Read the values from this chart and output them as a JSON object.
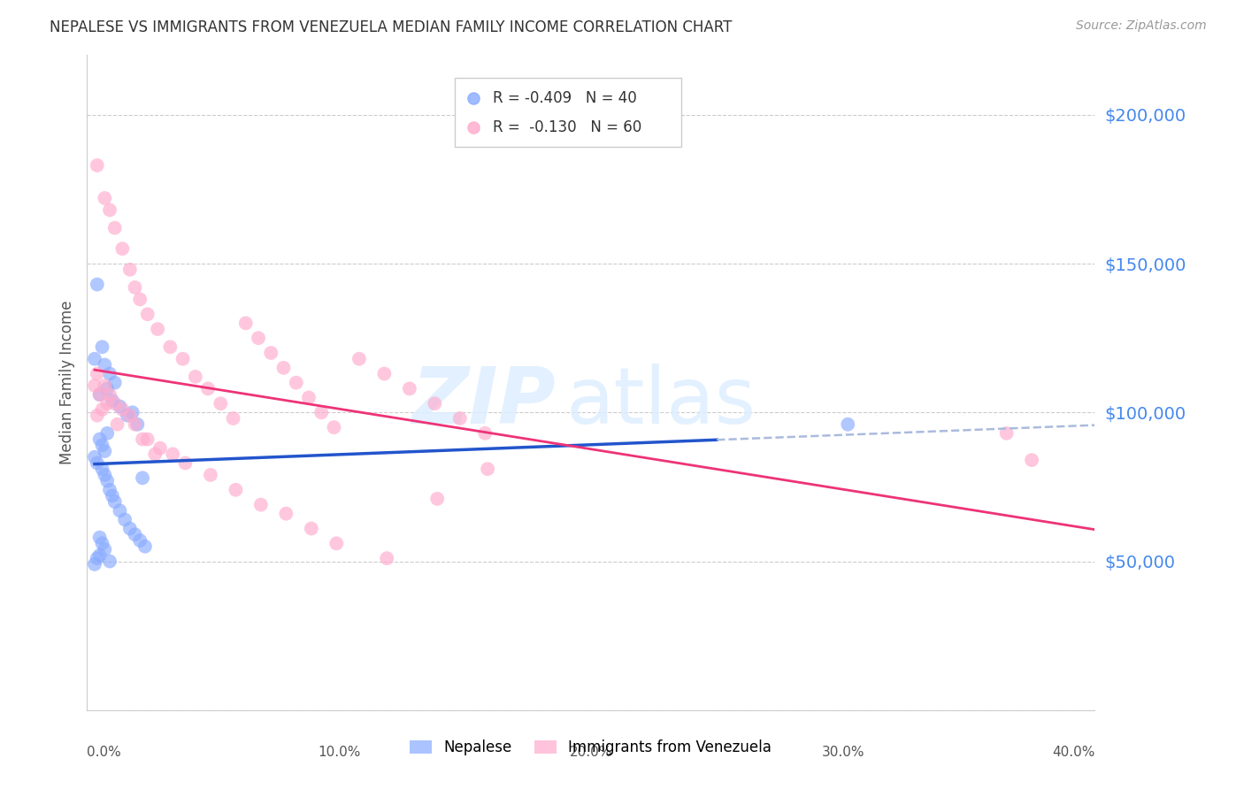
{
  "title": "NEPALESE VS IMMIGRANTS FROM VENEZUELA MEDIAN FAMILY INCOME CORRELATION CHART",
  "source": "Source: ZipAtlas.com",
  "ylabel": "Median Family Income",
  "legend_blue_r": "-0.409",
  "legend_blue_n": "40",
  "legend_pink_r": "-0.130",
  "legend_pink_n": "60",
  "blue_color": "#88AAFF",
  "pink_color": "#FFAACC",
  "trendline_blue_color": "#2255CC",
  "trendline_pink_color": "#EE3377",
  "dashed_ext_color": "#AABBDD",
  "right_axis_color": "#4488EE",
  "ytick_positions": [
    0,
    50000,
    100000,
    150000,
    200000
  ],
  "xlim": [
    0.0,
    0.4
  ],
  "ylim": [
    0,
    220000
  ],
  "blue_scatter_x": [
    0.004,
    0.006,
    0.003,
    0.007,
    0.009,
    0.011,
    0.008,
    0.005,
    0.01,
    0.013,
    0.018,
    0.016,
    0.02,
    0.022,
    0.008,
    0.005,
    0.006,
    0.007,
    0.003,
    0.004,
    0.006,
    0.007,
    0.008,
    0.009,
    0.01,
    0.011,
    0.013,
    0.015,
    0.017,
    0.019,
    0.021,
    0.023,
    0.007,
    0.005,
    0.004,
    0.009,
    0.006,
    0.005,
    0.302,
    0.003
  ],
  "blue_scatter_y": [
    143000,
    122000,
    118000,
    116000,
    113000,
    110000,
    108000,
    106000,
    104000,
    102000,
    100000,
    99000,
    96000,
    78000,
    93000,
    91000,
    89000,
    87000,
    85000,
    83000,
    81000,
    79000,
    77000,
    74000,
    72000,
    70000,
    67000,
    64000,
    61000,
    59000,
    57000,
    55000,
    54000,
    52000,
    51000,
    50000,
    56000,
    58000,
    96000,
    49000
  ],
  "pink_scatter_x": [
    0.004,
    0.007,
    0.009,
    0.011,
    0.014,
    0.017,
    0.019,
    0.021,
    0.024,
    0.028,
    0.033,
    0.038,
    0.043,
    0.048,
    0.053,
    0.058,
    0.063,
    0.068,
    0.073,
    0.078,
    0.083,
    0.088,
    0.093,
    0.098,
    0.108,
    0.118,
    0.128,
    0.138,
    0.148,
    0.158,
    0.004,
    0.007,
    0.009,
    0.011,
    0.014,
    0.017,
    0.019,
    0.024,
    0.029,
    0.034,
    0.039,
    0.049,
    0.059,
    0.069,
    0.079,
    0.089,
    0.099,
    0.119,
    0.139,
    0.159,
    0.003,
    0.005,
    0.008,
    0.006,
    0.004,
    0.012,
    0.022,
    0.027,
    0.375,
    0.365
  ],
  "pink_scatter_y": [
    183000,
    172000,
    168000,
    162000,
    155000,
    148000,
    142000,
    138000,
    133000,
    128000,
    122000,
    118000,
    112000,
    108000,
    103000,
    98000,
    130000,
    125000,
    120000,
    115000,
    110000,
    105000,
    100000,
    95000,
    118000,
    113000,
    108000,
    103000,
    98000,
    93000,
    113000,
    109000,
    106000,
    103000,
    101000,
    99000,
    96000,
    91000,
    88000,
    86000,
    83000,
    79000,
    74000,
    69000,
    66000,
    61000,
    56000,
    51000,
    71000,
    81000,
    109000,
    106000,
    103000,
    101000,
    99000,
    96000,
    91000,
    86000,
    84000,
    93000
  ]
}
